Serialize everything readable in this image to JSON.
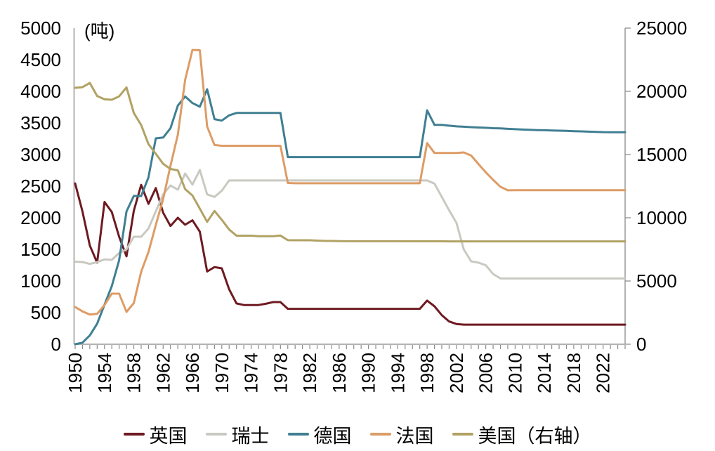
{
  "chart_data": {
    "type": "line",
    "unit_label": "(吨)",
    "grid": false,
    "legend_position": "bottom",
    "x": [
      1950,
      1951,
      1952,
      1953,
      1954,
      1955,
      1956,
      1957,
      1958,
      1959,
      1960,
      1961,
      1962,
      1963,
      1964,
      1965,
      1966,
      1967,
      1968,
      1969,
      1970,
      1971,
      1972,
      1973,
      1974,
      1975,
      1976,
      1977,
      1978,
      1979,
      1980,
      1981,
      1982,
      1983,
      1984,
      1985,
      1986,
      1987,
      1988,
      1989,
      1990,
      1991,
      1992,
      1993,
      1994,
      1995,
      1996,
      1997,
      1998,
      1999,
      2000,
      2001,
      2002,
      2003,
      2004,
      2005,
      2006,
      2007,
      2008,
      2009,
      2010,
      2011,
      2012,
      2013,
      2014,
      2015,
      2016,
      2017,
      2018,
      2019,
      2020,
      2021,
      2022,
      2023,
      2024,
      2025
    ],
    "x_tick_labels": [
      "1950",
      "1954",
      "1958",
      "1962",
      "1966",
      "1970",
      "1974",
      "1978",
      "1982",
      "1986",
      "1990",
      "1994",
      "1998",
      "2002",
      "2006",
      "2010",
      "2014",
      "2018",
      "2022"
    ],
    "left_axis": {
      "min": 0,
      "max": 5000,
      "step": 500,
      "tick_labels": [
        "0",
        "500",
        "1000",
        "1500",
        "2000",
        "2500",
        "3000",
        "3500",
        "4000",
        "4500",
        "5000"
      ]
    },
    "right_axis": {
      "min": 0,
      "max": 25000,
      "step": 5000,
      "tick_labels": [
        "0",
        "5000",
        "10000",
        "15000",
        "20000",
        "25000"
      ]
    },
    "series": [
      {
        "name": "英国",
        "axis": "left",
        "color": "#6e1a21",
        "values": [
          2543,
          2100,
          1560,
          1290,
          2250,
          2090,
          1700,
          1390,
          2110,
          2520,
          2220,
          2470,
          2080,
          1870,
          2000,
          1890,
          1960,
          1780,
          1150,
          1220,
          1200,
          870,
          645,
          620,
          620,
          620,
          640,
          667,
          667,
          560,
          560,
          560,
          560,
          560,
          560,
          560,
          560,
          560,
          560,
          560,
          560,
          560,
          560,
          560,
          560,
          560,
          560,
          560,
          690,
          600,
          460,
          360,
          320,
          310,
          310,
          310,
          310,
          310,
          310,
          310,
          310,
          310,
          310,
          310,
          310,
          310,
          310,
          310,
          310,
          310,
          310,
          310,
          310,
          310,
          310,
          310
        ]
      },
      {
        "name": "瑞士",
        "axis": "left",
        "color": "#c9c9c2",
        "values": [
          1306,
          1300,
          1270,
          1298,
          1342,
          1334,
          1443,
          1500,
          1700,
          1700,
          1830,
          2100,
          2370,
          2510,
          2444,
          2700,
          2525,
          2756,
          2370,
          2330,
          2428,
          2590,
          2590,
          2590,
          2590,
          2590,
          2590,
          2590,
          2590,
          2590,
          2590,
          2590,
          2590,
          2590,
          2590,
          2590,
          2590,
          2590,
          2590,
          2590,
          2590,
          2590,
          2590,
          2590,
          2590,
          2590,
          2590,
          2590,
          2590,
          2540,
          2330,
          2120,
          1920,
          1500,
          1311,
          1290,
          1250,
          1110,
          1040,
          1040,
          1040,
          1040,
          1040,
          1040,
          1040,
          1040,
          1040,
          1040,
          1040,
          1040,
          1040,
          1040,
          1040,
          1040,
          1040,
          1040
        ]
      },
      {
        "name": "德国",
        "axis": "left",
        "color": "#3f7f92",
        "values": [
          0,
          24,
          140,
          325,
          626,
          920,
          1328,
          2100,
          2345,
          2343,
          2640,
          3256,
          3269,
          3415,
          3775,
          3919,
          3814,
          3757,
          4033,
          3560,
          3537,
          3620,
          3658,
          3658,
          3658,
          3658,
          3658,
          3658,
          3658,
          2960,
          2960,
          2960,
          2960,
          2960,
          2960,
          2960,
          2960,
          2960,
          2960,
          2960,
          2960,
          2960,
          2960,
          2960,
          2960,
          2960,
          2960,
          2960,
          3700,
          3469,
          3469,
          3457,
          3446,
          3440,
          3433,
          3428,
          3423,
          3417,
          3413,
          3407,
          3401,
          3396,
          3391,
          3387,
          3384,
          3381,
          3378,
          3374,
          3370,
          3367,
          3362,
          3359,
          3355,
          3353,
          3352,
          3352
        ]
      },
      {
        "name": "法国",
        "axis": "left",
        "color": "#dd9c66",
        "values": [
          588,
          520,
          470,
          480,
          620,
          800,
          800,
          511,
          650,
          1146,
          1458,
          1884,
          2298,
          2821,
          3313,
          4181,
          4654,
          4650,
          3444,
          3151,
          3139,
          3139,
          3139,
          3139,
          3139,
          3139,
          3139,
          3139,
          3139,
          2550,
          2546,
          2546,
          2546,
          2546,
          2546,
          2546,
          2546,
          2546,
          2546,
          2546,
          2546,
          2546,
          2546,
          2546,
          2546,
          2546,
          2546,
          2546,
          3182,
          3025,
          3025,
          3025,
          3025,
          3033,
          2985,
          2850,
          2720,
          2600,
          2490,
          2435,
          2436,
          2436,
          2436,
          2436,
          2436,
          2436,
          2436,
          2436,
          2436,
          2436,
          2436,
          2436,
          2436,
          2436,
          2436,
          2436
        ]
      },
      {
        "name": "美国（右轴）",
        "axis": "right",
        "color": "#b1a264",
        "values": [
          20279,
          20326,
          20663,
          19631,
          19366,
          19331,
          19602,
          20312,
          18290,
          17335,
          15822,
          15060,
          14269,
          13859,
          13749,
          12268,
          11761,
          10722,
          9679,
          10539,
          9839,
          9070,
          8584,
          8584,
          8584,
          8544,
          8544,
          8544,
          8597,
          8230,
          8221,
          8221,
          8221,
          8192,
          8174,
          8169,
          8150,
          8146,
          8146,
          8146,
          8146,
          8146,
          8146,
          8146,
          8146,
          8140,
          8140,
          8140,
          8139,
          8139,
          8137,
          8134,
          8134,
          8134,
          8134,
          8134,
          8134,
          8134,
          8134,
          8134,
          8134,
          8134,
          8134,
          8134,
          8134,
          8134,
          8134,
          8134,
          8134,
          8134,
          8134,
          8134,
          8134,
          8134,
          8134,
          8134
        ]
      }
    ]
  },
  "colors": {
    "axis_line": "#b3b3b3",
    "tick_mark": "#8c8c8c",
    "label_text": "#000000",
    "background": "#ffffff"
  }
}
